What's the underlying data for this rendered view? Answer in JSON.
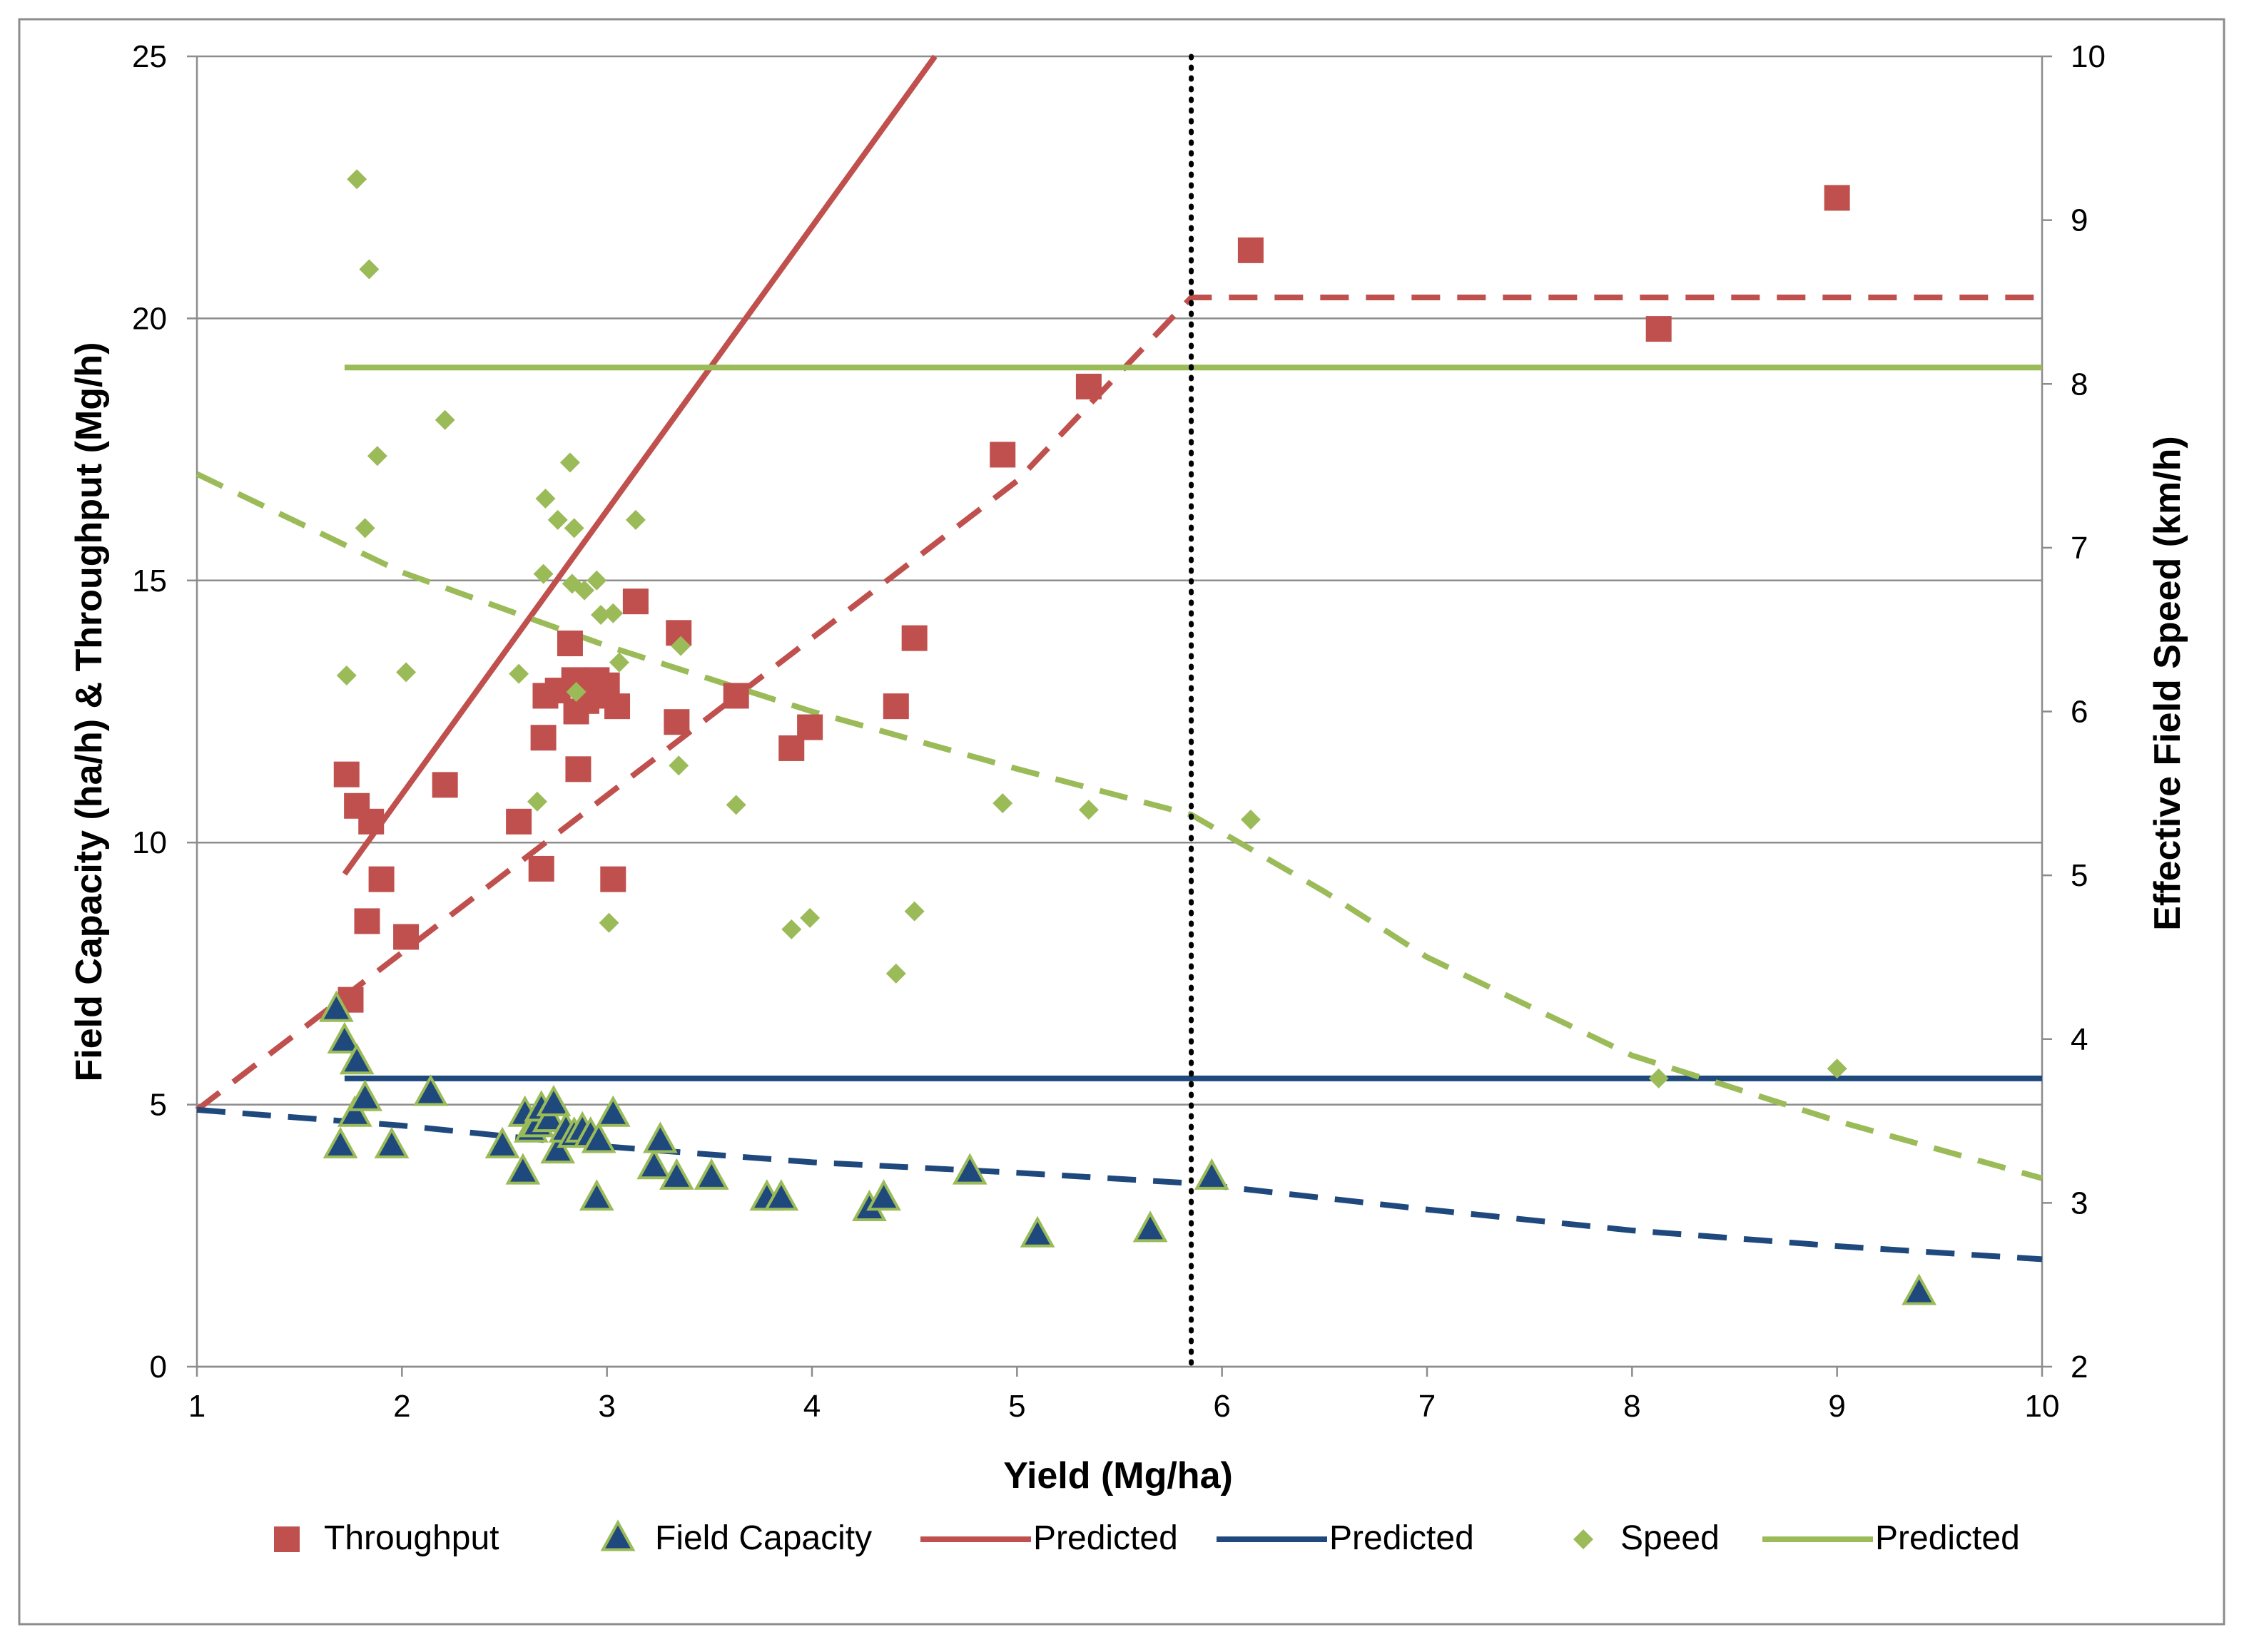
{
  "chart_data": {
    "type": "scatter",
    "xlabel": "Yield (Mg/ha)",
    "ylabel_left": "Field Capacity (ha/h) & Throughput (Mg/h)",
    "ylabel_right": "Effective Field Speed (km/h)",
    "xlim": [
      1,
      10
    ],
    "ylim_left": [
      0,
      25
    ],
    "ylim_right": [
      2,
      10
    ],
    "x_ticks": [
      "1",
      "2",
      "3",
      "4",
      "5",
      "6",
      "7",
      "8",
      "9",
      "10"
    ],
    "y_left_ticks": [
      "0",
      "5",
      "10",
      "15",
      "20",
      "25"
    ],
    "y_right_ticks": [
      "2",
      "3",
      "4",
      "5",
      "6",
      "7",
      "8",
      "9",
      "10"
    ],
    "grid": "horizontal",
    "vertical_reference_line": {
      "x": 5.85,
      "style": "dotted"
    },
    "colors": {
      "throughput": "#c0504d",
      "field_capacity": "#1f497d",
      "speed": "#9bbb59",
      "marker_edge_triangle": "#9bbb59"
    },
    "series": [
      {
        "name": "Throughput",
        "kind": "scatter",
        "marker": "square",
        "axis": "left",
        "points": [
          [
            1.73,
            11.3
          ],
          [
            1.75,
            7.0
          ],
          [
            1.78,
            10.7
          ],
          [
            1.83,
            8.5
          ],
          [
            1.85,
            10.4
          ],
          [
            1.9,
            9.3
          ],
          [
            2.02,
            8.2
          ],
          [
            2.21,
            11.1
          ],
          [
            2.57,
            10.4
          ],
          [
            2.68,
            9.5
          ],
          [
            2.69,
            12.0
          ],
          [
            2.7,
            12.8
          ],
          [
            2.76,
            12.9
          ],
          [
            2.82,
            13.8
          ],
          [
            2.84,
            13.1
          ],
          [
            2.85,
            12.5
          ],
          [
            2.86,
            11.4
          ],
          [
            2.89,
            13.0
          ],
          [
            2.9,
            12.7
          ],
          [
            2.95,
            13.1
          ],
          [
            2.97,
            12.8
          ],
          [
            3.0,
            13.0
          ],
          [
            3.03,
            9.3
          ],
          [
            3.05,
            12.6
          ],
          [
            3.14,
            14.6
          ],
          [
            3.34,
            12.3
          ],
          [
            3.35,
            14.0
          ],
          [
            3.63,
            12.8
          ],
          [
            3.9,
            11.8
          ],
          [
            3.99,
            12.2
          ],
          [
            4.41,
            12.6
          ],
          [
            4.5,
            13.9
          ],
          [
            4.93,
            17.4
          ],
          [
            5.35,
            18.7
          ],
          [
            6.14,
            21.3
          ],
          [
            8.13,
            19.8
          ],
          [
            9.0,
            22.3
          ]
        ]
      },
      {
        "name": "Field Capacity",
        "kind": "scatter",
        "marker": "triangle",
        "axis": "left",
        "points": [
          [
            1.68,
            6.8
          ],
          [
            1.7,
            4.2
          ],
          [
            1.72,
            6.2
          ],
          [
            1.77,
            4.8
          ],
          [
            1.78,
            5.8
          ],
          [
            1.82,
            5.1
          ],
          [
            1.95,
            4.2
          ],
          [
            2.14,
            5.2
          ],
          [
            2.49,
            4.2
          ],
          [
            2.59,
            3.7
          ],
          [
            2.6,
            4.8
          ],
          [
            2.63,
            4.5
          ],
          [
            2.66,
            4.6
          ],
          [
            2.68,
            4.9
          ],
          [
            2.72,
            4.7
          ],
          [
            2.74,
            5.0
          ],
          [
            2.76,
            4.1
          ],
          [
            2.8,
            4.5
          ],
          [
            2.84,
            4.4
          ],
          [
            2.88,
            4.5
          ],
          [
            2.92,
            4.4
          ],
          [
            2.95,
            3.2
          ],
          [
            2.96,
            4.3
          ],
          [
            3.03,
            4.8
          ],
          [
            3.23,
            3.8
          ],
          [
            3.26,
            4.3
          ],
          [
            3.34,
            3.6
          ],
          [
            3.51,
            3.6
          ],
          [
            3.78,
            3.2
          ],
          [
            3.85,
            3.2
          ],
          [
            4.28,
            3.0
          ],
          [
            4.35,
            3.2
          ],
          [
            4.77,
            3.7
          ],
          [
            5.1,
            2.5
          ],
          [
            5.65,
            2.6
          ],
          [
            5.95,
            3.6
          ],
          [
            9.4,
            1.4
          ]
        ]
      },
      {
        "name": "Predicted",
        "kind": "line",
        "style": "solid",
        "color": "#c0504d",
        "axis": "left",
        "points": [
          [
            1.72,
            9.4
          ],
          [
            4.6,
            25.0
          ]
        ]
      },
      {
        "name": "Predicted",
        "kind": "line",
        "style": "dashed",
        "color": "#c0504d",
        "axis": "left",
        "in_legend": false,
        "points": [
          [
            1.0,
            4.9
          ],
          [
            2.0,
            7.9
          ],
          [
            3.0,
            10.9
          ],
          [
            4.0,
            13.9
          ],
          [
            5.0,
            16.9
          ],
          [
            5.85,
            20.4
          ],
          [
            10.0,
            20.4
          ]
        ]
      },
      {
        "name": "Predicted",
        "kind": "line",
        "style": "solid",
        "color": "#1f497d",
        "axis": "left",
        "points": [
          [
            1.72,
            5.5
          ],
          [
            10.0,
            5.5
          ]
        ]
      },
      {
        "name": "Predicted",
        "kind": "line",
        "style": "dashed",
        "color": "#1f497d",
        "axis": "left",
        "in_legend": false,
        "points": [
          [
            1.0,
            4.9
          ],
          [
            2.0,
            4.6
          ],
          [
            3.0,
            4.2
          ],
          [
            4.0,
            3.9
          ],
          [
            5.0,
            3.7
          ],
          [
            5.85,
            3.5
          ],
          [
            7.0,
            3.0
          ],
          [
            8.0,
            2.6
          ],
          [
            9.0,
            2.3
          ],
          [
            10.0,
            2.05
          ]
        ]
      },
      {
        "name": "Speed",
        "kind": "scatter",
        "marker": "diamond",
        "axis": "right",
        "points": [
          [
            1.73,
            6.22
          ],
          [
            1.78,
            9.25
          ],
          [
            1.82,
            7.12
          ],
          [
            1.84,
            8.7
          ],
          [
            1.88,
            7.56
          ],
          [
            2.02,
            6.24
          ],
          [
            2.21,
            7.78
          ],
          [
            2.57,
            6.23
          ],
          [
            2.66,
            5.45
          ],
          [
            2.69,
            6.84
          ],
          [
            2.7,
            7.3
          ],
          [
            2.76,
            7.17
          ],
          [
            2.82,
            7.52
          ],
          [
            2.83,
            6.78
          ],
          [
            2.84,
            7.12
          ],
          [
            2.85,
            6.12
          ],
          [
            2.89,
            6.74
          ],
          [
            2.95,
            6.8
          ],
          [
            2.97,
            6.59
          ],
          [
            3.01,
            4.71
          ],
          [
            3.03,
            6.6
          ],
          [
            3.06,
            6.3
          ],
          [
            3.14,
            7.17
          ],
          [
            3.35,
            5.67
          ],
          [
            3.36,
            6.4
          ],
          [
            3.63,
            5.43
          ],
          [
            3.9,
            4.67
          ],
          [
            3.99,
            4.74
          ],
          [
            4.41,
            4.4
          ],
          [
            4.5,
            4.78
          ],
          [
            4.93,
            5.44
          ],
          [
            5.35,
            5.4
          ],
          [
            6.14,
            5.34
          ],
          [
            8.13,
            3.76
          ],
          [
            9.0,
            3.82
          ]
        ]
      },
      {
        "name": "Predicted",
        "kind": "line",
        "style": "solid",
        "color": "#9bbb59",
        "axis": "right",
        "points": [
          [
            1.72,
            8.1
          ],
          [
            10.0,
            8.1
          ]
        ]
      },
      {
        "name": "Predicted",
        "kind": "line",
        "style": "dashed",
        "color": "#9bbb59",
        "axis": "right",
        "in_legend": false,
        "points": [
          [
            1.0,
            7.45
          ],
          [
            2.0,
            6.85
          ],
          [
            3.0,
            6.4
          ],
          [
            4.0,
            6.0
          ],
          [
            5.0,
            5.65
          ],
          [
            5.85,
            5.37
          ],
          [
            6.5,
            4.9
          ],
          [
            7.0,
            4.5
          ],
          [
            8.0,
            3.9
          ],
          [
            9.0,
            3.5
          ],
          [
            10.0,
            3.15
          ]
        ]
      }
    ],
    "legend": {
      "position": "bottom",
      "entries": [
        {
          "label": "Throughput",
          "marker": "square",
          "color": "#c0504d"
        },
        {
          "label": "Field Capacity",
          "marker": "triangle",
          "color": "#1f497d"
        },
        {
          "label": "Predicted",
          "marker": "line",
          "color": "#c0504d"
        },
        {
          "label": "Predicted",
          "marker": "line",
          "color": "#1f497d"
        },
        {
          "label": "Speed",
          "marker": "diamond",
          "color": "#9bbb59"
        },
        {
          "label": "Predicted",
          "marker": "line",
          "color": "#9bbb59"
        }
      ]
    }
  }
}
